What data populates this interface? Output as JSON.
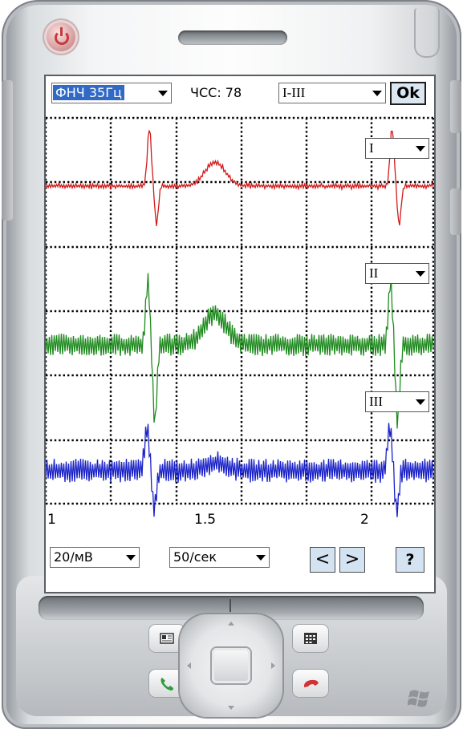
{
  "filter": {
    "label": "ФНЧ 35Гц"
  },
  "heart_rate": {
    "label": "ЧСС: 78"
  },
  "lead_group": {
    "label": "I-III"
  },
  "ok_button": {
    "label": "Ok"
  },
  "lead_selectors": [
    {
      "label": "I"
    },
    {
      "label": "II"
    },
    {
      "label": "III"
    }
  ],
  "time_ticks": [
    "1",
    "1.5",
    "2"
  ],
  "scale": {
    "label": "20/мВ"
  },
  "speed": {
    "label": "50/сек"
  },
  "nav": {
    "prev_label": "<",
    "next_label": ">",
    "help_label": "?"
  },
  "icons": [
    "power-icon",
    "contacts-icon",
    "calendar-icon",
    "call-icon",
    "end-call-icon",
    "windows-logo-icon"
  ],
  "colors": {
    "lead1": "#d11a1a",
    "lead2": "#1f8a1f",
    "lead3": "#1a22c8",
    "highlight": "#3169c6",
    "button": "#d4e3f2"
  },
  "chart_data": {
    "type": "line",
    "x_axis": {
      "ticks": [
        1,
        1.5,
        2
      ],
      "range": [
        1,
        2.2
      ]
    },
    "series": [
      {
        "name": "I",
        "beats_at": [
          1.33,
          2.08
        ]
      },
      {
        "name": "II",
        "beats_at": [
          1.33,
          2.08
        ]
      },
      {
        "name": "III",
        "beats_at": [
          1.33,
          2.08
        ]
      }
    ],
    "grid": true
  }
}
